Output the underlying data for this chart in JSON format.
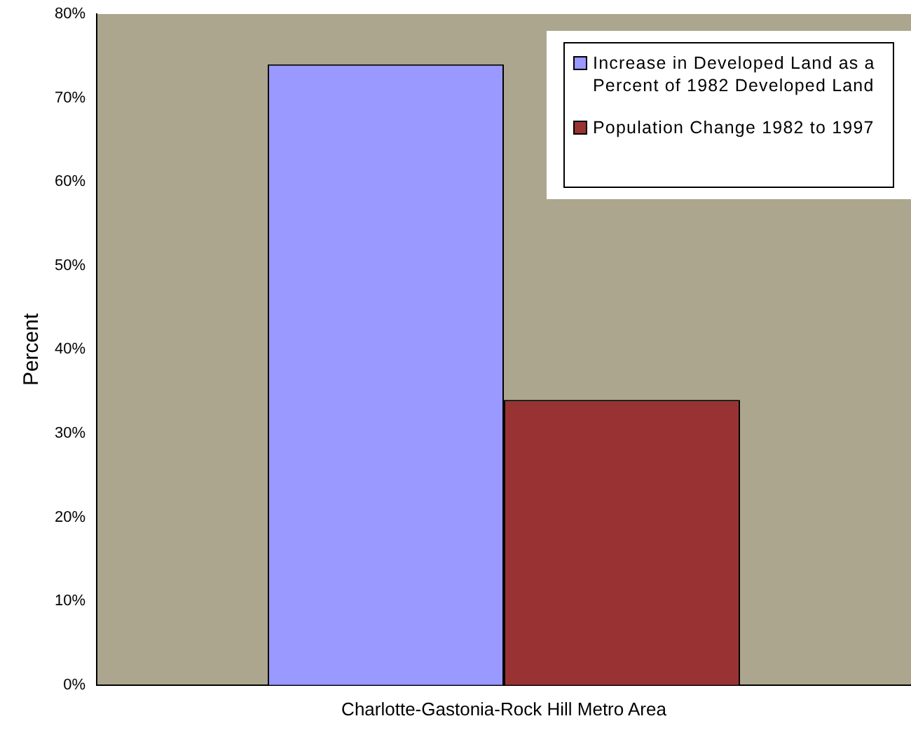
{
  "chart_data": {
    "type": "bar",
    "ylabel": "Percent",
    "categories": [
      "Charlotte-Gastonia-Rock Hill Metro Area"
    ],
    "series": [
      {
        "name": "Increase in Developed Land as a Percent of 1982 Developed Land",
        "color": "#9999ff",
        "values": [
          74
        ]
      },
      {
        "name": "Population Change 1982 to 1997",
        "color": "#993333",
        "values": [
          34
        ]
      }
    ],
    "ylim": [
      0,
      80
    ],
    "yticks": [
      {
        "value": 0,
        "label": "0%"
      },
      {
        "value": 10,
        "label": "10%"
      },
      {
        "value": 20,
        "label": "20%"
      },
      {
        "value": 30,
        "label": "30%"
      },
      {
        "value": 40,
        "label": "40%"
      },
      {
        "value": 50,
        "label": "50%"
      },
      {
        "value": 60,
        "label": "60%"
      },
      {
        "value": 70,
        "label": "70%"
      },
      {
        "value": 80,
        "label": "80%"
      }
    ],
    "grid": false,
    "legend": "top right"
  }
}
